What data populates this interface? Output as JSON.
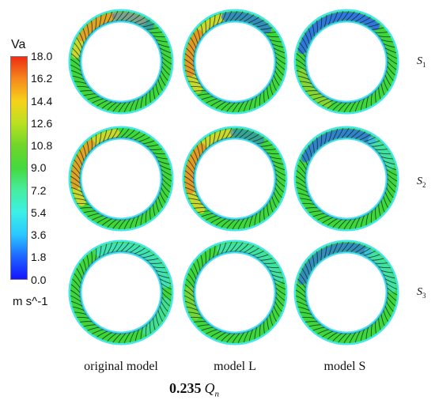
{
  "legend": {
    "title": "Va",
    "ticks": [
      "18.0",
      "16.2",
      "14.4",
      "12.6",
      "10.8",
      "9.0",
      "7.2",
      "5.4",
      "3.6",
      "1.8",
      "0.0"
    ],
    "unit": "m s^-1"
  },
  "columns": [
    "original model",
    "model L",
    "model S"
  ],
  "rows": [
    {
      "symbol": "S",
      "subscript": "1"
    },
    {
      "symbol": "S",
      "subscript": "2"
    },
    {
      "symbol": "S",
      "subscript": "3"
    }
  ],
  "flow_rate": {
    "value": "0.235",
    "symbol": "Q",
    "subscript": "n"
  },
  "colors": {
    "green": "#3fd63a",
    "blue": "#2f6cf0",
    "cyan": "#44e6e6",
    "yellow": "#f0d826",
    "orange": "#f07f1e",
    "red": "#e8301a",
    "blade": "#0b2a24"
  }
}
